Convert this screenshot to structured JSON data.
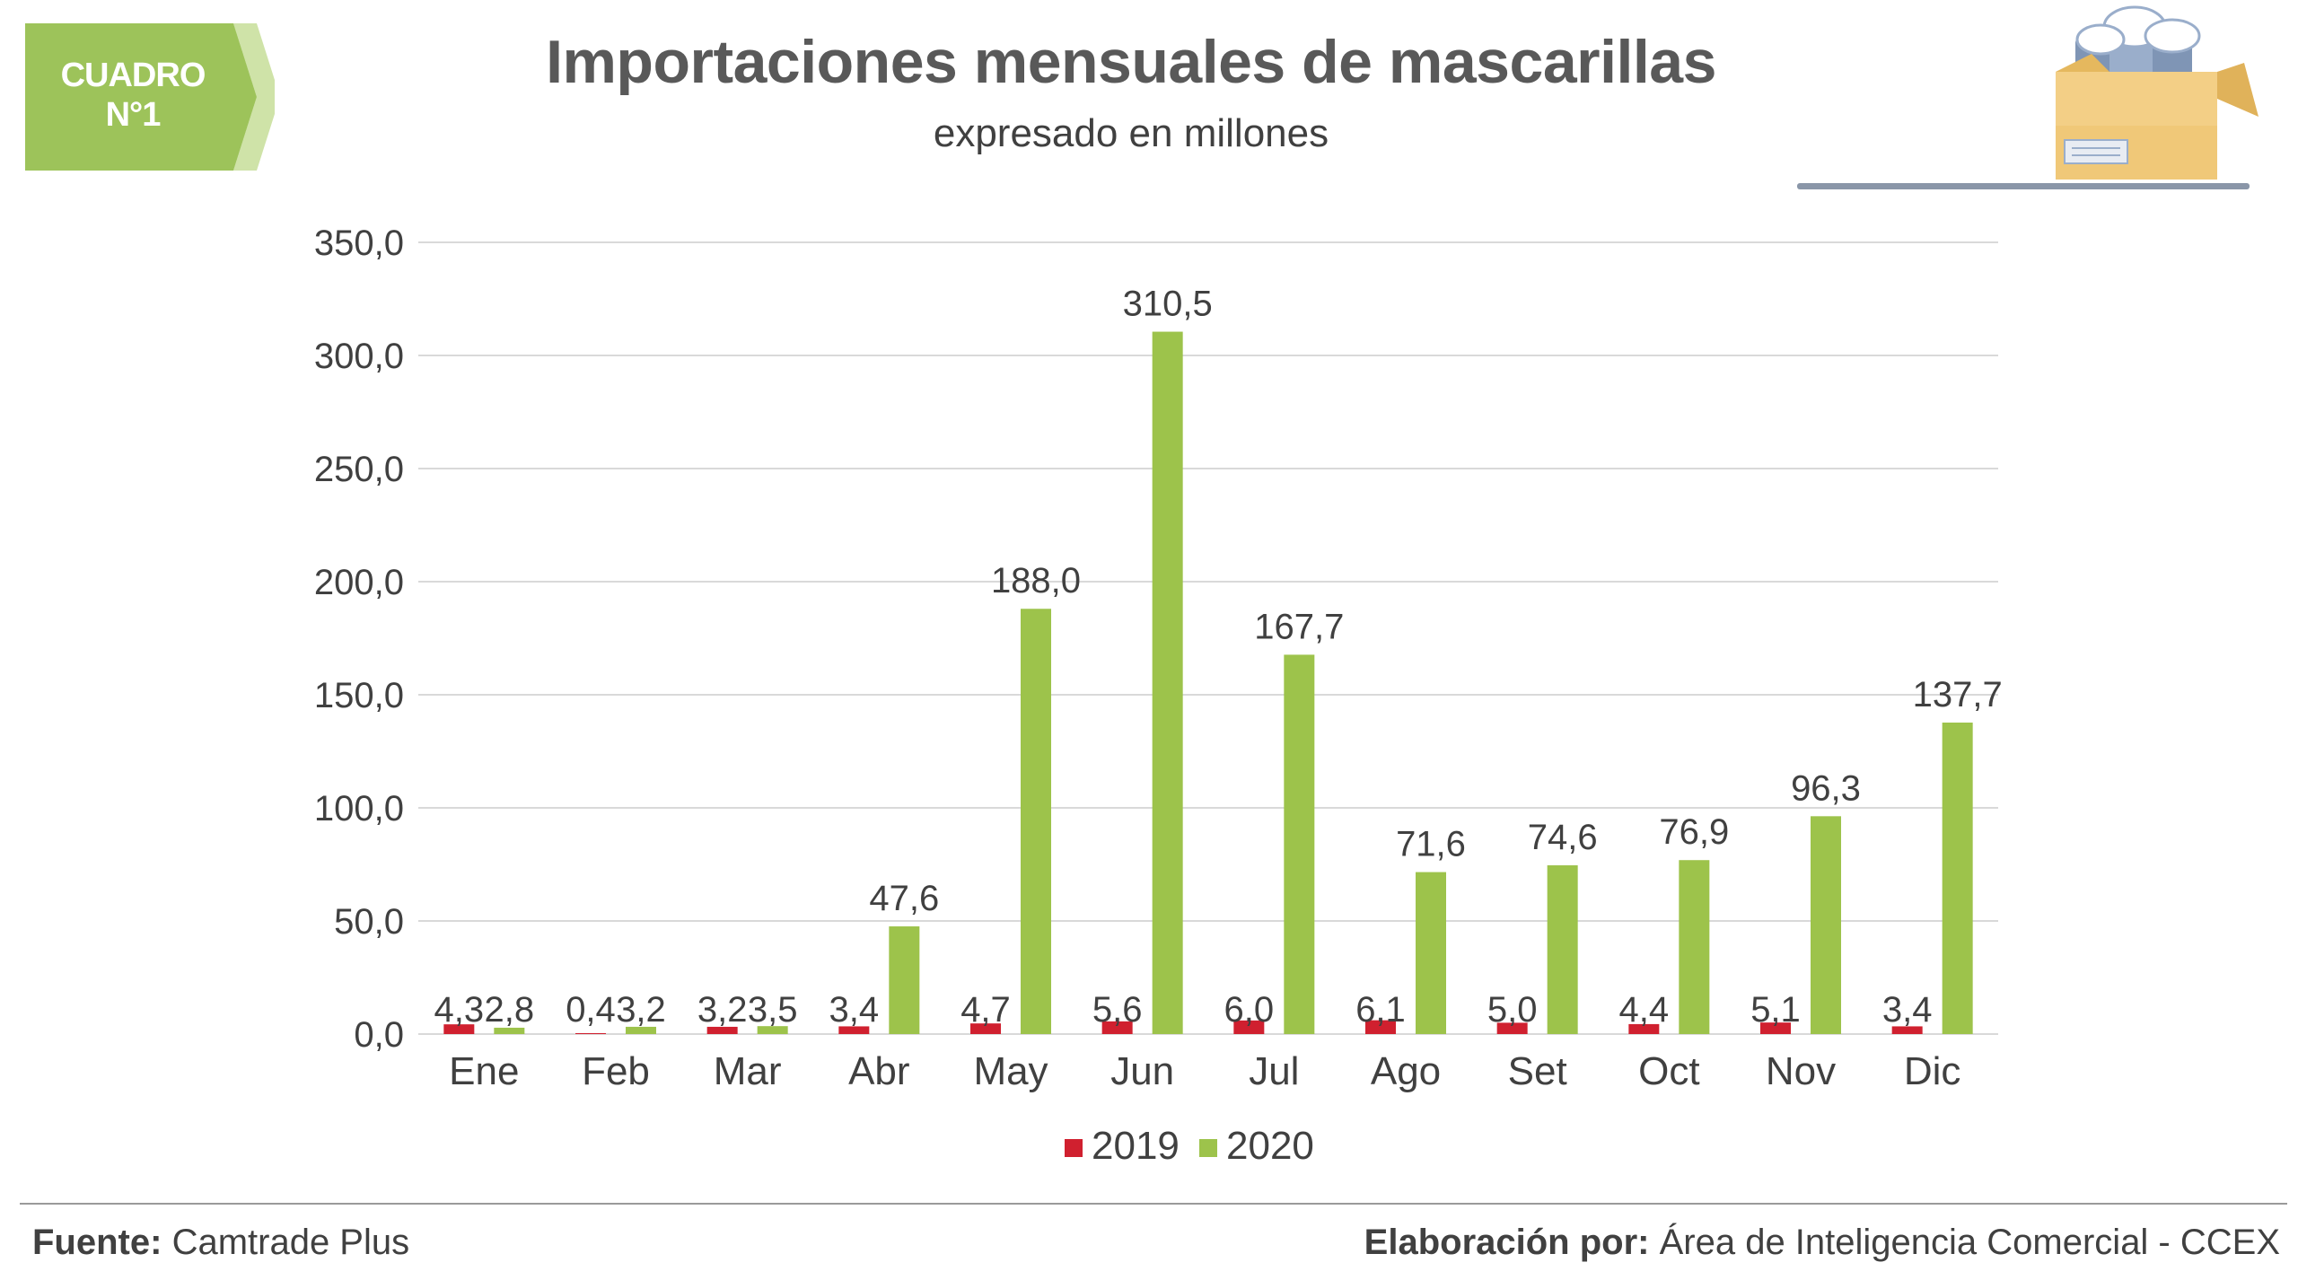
{
  "badge": {
    "line1": "CUADRO",
    "line2": "N°1"
  },
  "header": {
    "title": "Importaciones mensuales de mascarillas",
    "subtitle": "expresado en millones"
  },
  "footer": {
    "source_label": "Fuente:",
    "source_value": "Camtrade Plus",
    "credit_label": "Elaboración por:",
    "credit_value": "Área de Inteligencia Comercial - CCEX"
  },
  "colors": {
    "badge_green": "#9dc35a",
    "series_2019": "#d0202f",
    "series_2020": "#9dc34b",
    "grid": "#d9d9d9",
    "rule": "#8a96a8"
  },
  "icons": [
    "mask-box-illustration"
  ],
  "chart_data": {
    "type": "bar",
    "title": "Importaciones mensuales de mascarillas",
    "subtitle": "expresado en millones",
    "xlabel": "",
    "ylabel": "",
    "ylim": [
      0,
      350
    ],
    "yticks": [
      0,
      50,
      100,
      150,
      200,
      250,
      300,
      350
    ],
    "ytick_labels": [
      "0,0",
      "50,0",
      "100,0",
      "150,0",
      "200,0",
      "250,0",
      "300,0",
      "350,0"
    ],
    "grid": true,
    "legend_position": "bottom",
    "categories": [
      "Ene",
      "Feb",
      "Mar",
      "Abr",
      "May",
      "Jun",
      "Jul",
      "Ago",
      "Set",
      "Oct",
      "Nov",
      "Dic"
    ],
    "series": [
      {
        "name": "2019",
        "values": [
          4.3,
          0.4,
          3.2,
          3.4,
          4.7,
          5.6,
          6.0,
          6.1,
          5.0,
          4.4,
          5.1,
          3.4
        ],
        "labels": [
          "4,3",
          "0,4",
          "3,2",
          "3,4",
          "4,7",
          "5,6",
          "6,0",
          "6,1",
          "5,0",
          "4,4",
          "5,1",
          "3,4"
        ]
      },
      {
        "name": "2020",
        "values": [
          2.8,
          3.2,
          3.5,
          47.6,
          188.0,
          310.5,
          167.7,
          71.6,
          74.6,
          76.9,
          96.3,
          137.7
        ],
        "labels": [
          "2,8",
          "3,2",
          "3,5",
          "47,6",
          "188,0",
          "310,5",
          "167,7",
          "71,6",
          "74,6",
          "76,9",
          "96,3",
          "137,7"
        ]
      }
    ]
  }
}
